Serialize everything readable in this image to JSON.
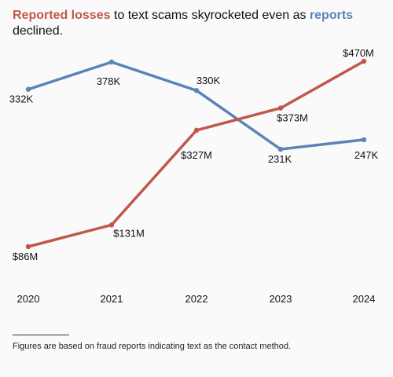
{
  "title": {
    "part1": "Reported losses",
    "part2": " to text scams skyrocketed even as ",
    "part3": "reports",
    "part4": " declined."
  },
  "footnote": "Figures are based on fraud reports indicating text as the contact method.",
  "colors": {
    "losses": "#c0584a",
    "reports": "#5b83b5",
    "background": "#fbfafb"
  },
  "chart_data": {
    "type": "line",
    "title": "Reported losses to text scams skyrocketed even as reports declined.",
    "x": [
      "2020",
      "2021",
      "2022",
      "2023",
      "2024"
    ],
    "series": [
      {
        "name": "Reported losses",
        "values": [
          86,
          131,
          327,
          373,
          470
        ],
        "unit": "$M",
        "labels": [
          "$86M",
          "$131M",
          "$327M",
          "$373M",
          "$470M"
        ]
      },
      {
        "name": "reports",
        "values": [
          332,
          378,
          330,
          231,
          247
        ],
        "unit": "K",
        "labels": [
          "332K",
          "378K",
          "330K",
          "231K",
          "247K"
        ]
      }
    ],
    "grid": false,
    "legend": "none"
  }
}
